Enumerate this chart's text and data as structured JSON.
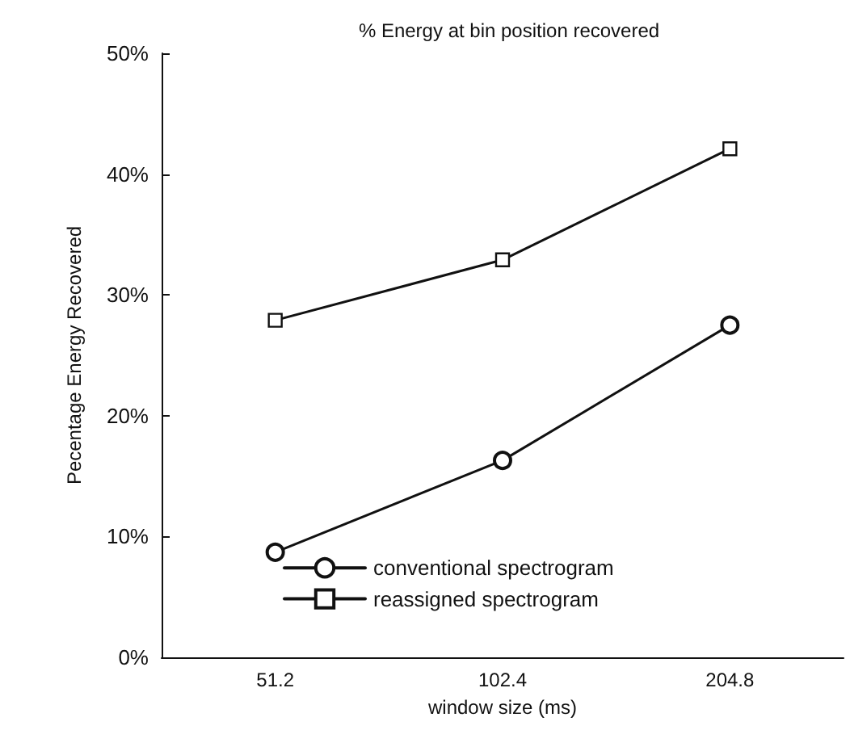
{
  "chart_data": {
    "type": "line",
    "title": "% Energy at bin position recovered",
    "xlabel": "window size (ms)",
    "ylabel": "Pecentage Energy Recovered",
    "categories": [
      "51.2",
      "102.4",
      "204.8"
    ],
    "series": [
      {
        "name": "conventional spectrogram",
        "color": "#111111",
        "marker": "circle",
        "values": [
          8.7,
          16.3,
          27.5
        ]
      },
      {
        "name": "reassigned spectrogram",
        "color": "#111111",
        "marker": "square",
        "values": [
          27.9,
          32.9,
          42.1
        ]
      }
    ],
    "ylim": [
      0,
      50
    ],
    "yticks": [
      {
        "value": 0,
        "label": "0%"
      },
      {
        "value": 10,
        "label": "10%"
      },
      {
        "value": 20,
        "label": "20%"
      },
      {
        "value": 30,
        "label": "30%"
      },
      {
        "value": 40,
        "label": "40%"
      },
      {
        "value": 50,
        "label": "50%"
      }
    ],
    "grid": false,
    "legend": "bottom"
  }
}
